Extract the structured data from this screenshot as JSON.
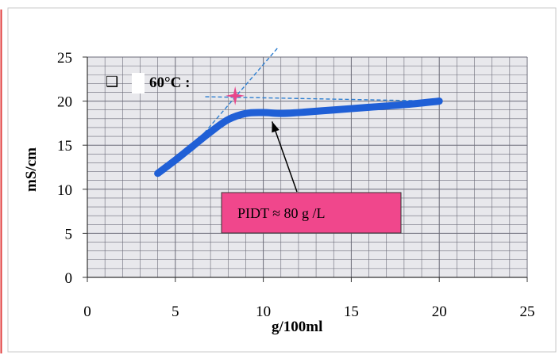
{
  "chart_data": {
    "type": "line",
    "xlabel": "g/100ml",
    "ylabel": "mS/cm",
    "xlim": [
      0,
      25
    ],
    "ylim": [
      0,
      25
    ],
    "x_ticks": [
      0,
      5,
      10,
      15,
      20,
      25
    ],
    "y_ticks": [
      0,
      5,
      10,
      15,
      20,
      25
    ],
    "x_tick_labels": [
      "0",
      "5",
      "10",
      "15",
      "20",
      "25"
    ],
    "y_tick_labels": [
      "0",
      "5",
      "10",
      "15",
      "20",
      "25"
    ],
    "grid": true,
    "legend": {
      "position": "top-left",
      "marker": "❑",
      "label": "60°C :"
    },
    "series": [
      {
        "color": "#1f5fd6",
        "points": [
          [
            4,
            11.8
          ],
          [
            5,
            13.3
          ],
          [
            6,
            14.9
          ],
          [
            7,
            16.5
          ],
          [
            8,
            17.9
          ],
          [
            9,
            18.6
          ],
          [
            10,
            18.7
          ],
          [
            11,
            18.6
          ],
          [
            12,
            18.7
          ],
          [
            14,
            19.0
          ],
          [
            16,
            19.3
          ],
          [
            18,
            19.6
          ],
          [
            20,
            20.0
          ]
        ]
      }
    ],
    "tangent_lines": [
      {
        "color": "#2f7fd0",
        "points": [
          [
            5.7,
            14.2
          ],
          [
            10.8,
            26.0
          ]
        ]
      },
      {
        "color": "#2f7fd0",
        "points": [
          [
            6.7,
            20.5
          ],
          [
            20,
            20.0
          ]
        ]
      }
    ],
    "intersection_point": {
      "x": 8.4,
      "y": 20.6,
      "color": "#e8468a"
    },
    "annotation": {
      "text": "PIDT   ≈ 80 g /L",
      "fill": "#f0478c",
      "arrow_target": {
        "x": 10.5,
        "y": 18.4
      }
    },
    "colors": {
      "plot_background": "#e8e8ec",
      "grid": "#6b6b78",
      "frame_border": "#c9c9c9",
      "left_accent": "#e23b3b"
    }
  }
}
